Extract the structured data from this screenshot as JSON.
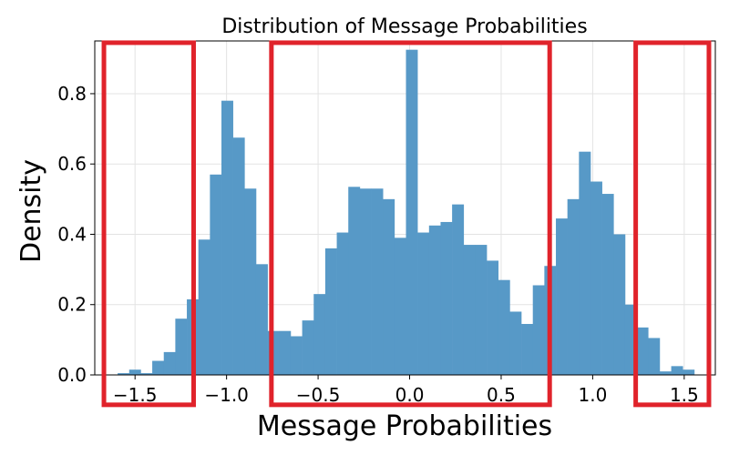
{
  "chart_data": {
    "type": "bar",
    "title": "Distribution of Message Probabilities",
    "xlabel": "Message Probabilities",
    "ylabel": "Density",
    "xlim": [
      -1.72,
      1.67
    ],
    "ylim": [
      0,
      0.95
    ],
    "grid": true,
    "bar_color": "#5799c7",
    "highlight_color": "#e0232b",
    "xticks": [
      {
        "value": -1.5,
        "label": "−1.5"
      },
      {
        "value": -1.0,
        "label": "−1.0"
      },
      {
        "value": -0.5,
        "label": "−0.5"
      },
      {
        "value": 0.0,
        "label": "0.0"
      },
      {
        "value": 0.5,
        "label": "0.5"
      },
      {
        "value": 1.0,
        "label": "1.0"
      },
      {
        "value": 1.5,
        "label": "1.5"
      }
    ],
    "yticks": [
      {
        "value": 0.0,
        "label": "0.0"
      },
      {
        "value": 0.2,
        "label": "0.2"
      },
      {
        "value": 0.4,
        "label": "0.4"
      },
      {
        "value": 0.6,
        "label": "0.6"
      },
      {
        "value": 0.8,
        "label": "0.8"
      }
    ],
    "bin_width": 0.063,
    "bin_start": -1.595,
    "values": [
      0.005,
      0.015,
      0.005,
      0.04,
      0.065,
      0.16,
      0.215,
      0.385,
      0.57,
      0.78,
      0.675,
      0.53,
      0.315,
      0.125,
      0.125,
      0.11,
      0.155,
      0.23,
      0.36,
      0.405,
      0.535,
      0.53,
      0.53,
      0.5,
      0.39,
      0.925,
      0.405,
      0.425,
      0.435,
      0.485,
      0.37,
      0.37,
      0.325,
      0.27,
      0.18,
      0.145,
      0.255,
      0.31,
      0.445,
      0.5,
      0.635,
      0.55,
      0.515,
      0.4,
      0.2,
      0.135,
      0.105,
      0.01,
      0.025,
      0.015
    ],
    "highlight_regions": [
      {
        "x_from": -1.67,
        "x_to": -1.18,
        "y_from": -0.085,
        "y_to": 0.945
      },
      {
        "x_from": -0.755,
        "x_to": 0.765,
        "y_from": -0.085,
        "y_to": 0.945
      },
      {
        "x_from": 1.235,
        "x_to": 1.635,
        "y_from": -0.085,
        "y_to": 0.945
      }
    ]
  }
}
